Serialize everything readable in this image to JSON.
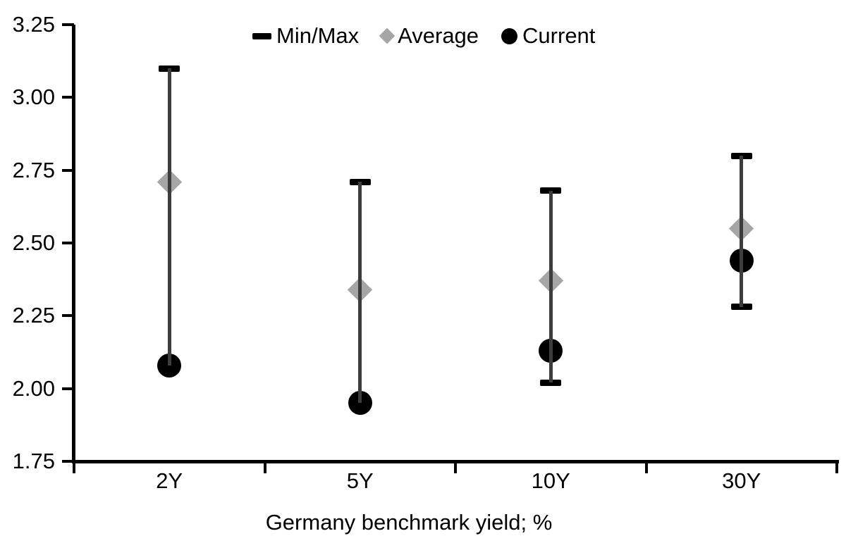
{
  "page": {
    "background": "#ffffff"
  },
  "chart_data": {
    "type": "scatter",
    "subtype": "min-max-range-dot-plot",
    "title": "",
    "xlabel": "Germany benchmark yield; %",
    "ylabel": "",
    "categories": [
      "2Y",
      "5Y",
      "10Y",
      "30Y"
    ],
    "ylim": [
      1.75,
      3.25
    ],
    "yticks": [
      3.25,
      3.0,
      2.75,
      2.5,
      2.25,
      2.0,
      1.75
    ],
    "ytick_labels": [
      "3.25",
      "3.00",
      "2.75",
      "2.50",
      "2.25",
      "2.00",
      "1.75"
    ],
    "grid": false,
    "legend_position": "top-center",
    "series": [
      {
        "name": "Min/Max",
        "type": "range",
        "marker": "dash",
        "color": "#000000",
        "line_color": "#3d3d3d",
        "min": [
          2.08,
          1.95,
          2.02,
          2.28
        ],
        "max": [
          3.1,
          2.71,
          2.68,
          2.8
        ]
      },
      {
        "name": "Average",
        "type": "point",
        "marker": "diamond",
        "color": "#a6a6a6",
        "values": [
          2.71,
          2.34,
          2.37,
          2.55
        ]
      },
      {
        "name": "Current",
        "type": "point",
        "marker": "circle",
        "color": "#000000",
        "values": [
          2.08,
          1.95,
          2.13,
          2.44
        ]
      }
    ]
  }
}
